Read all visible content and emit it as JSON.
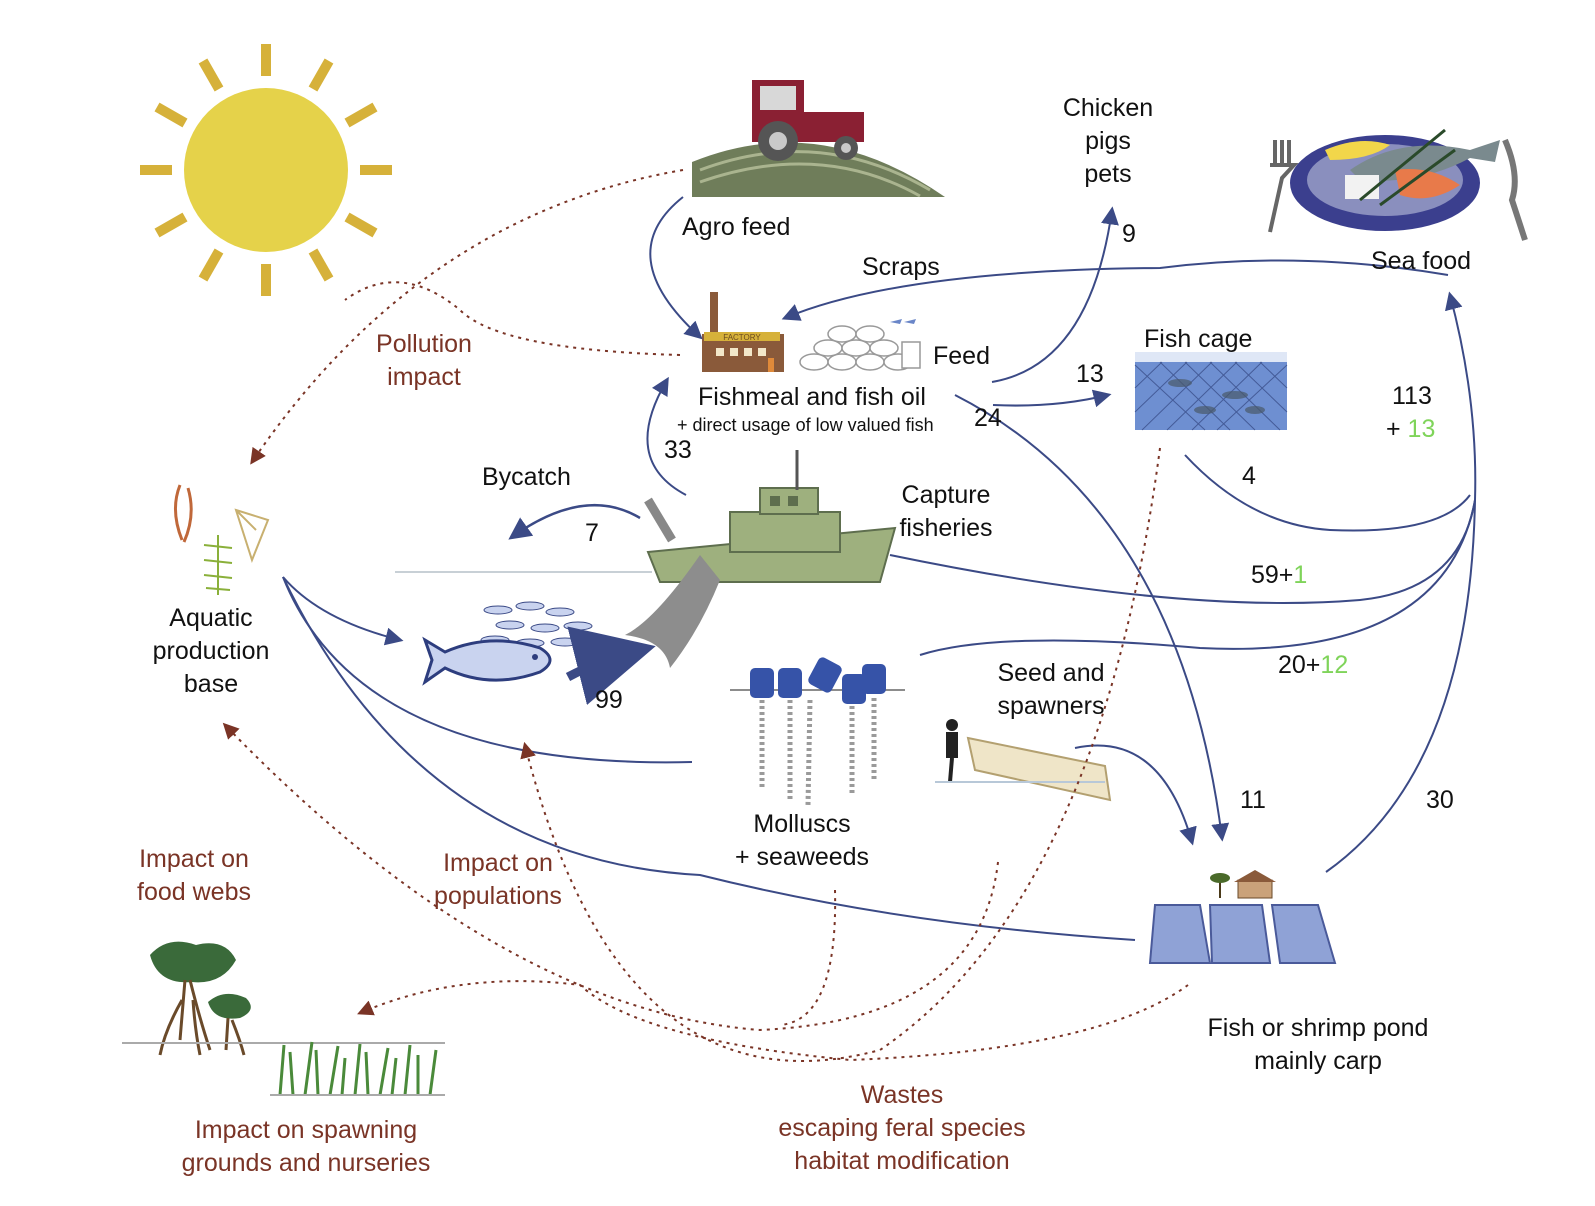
{
  "nodes": {
    "agro_feed": "Agro feed",
    "chicken": [
      "Chicken",
      "pigs",
      "pets"
    ],
    "sea_food": "Sea food",
    "scraps": "Scraps",
    "fish_cage": "Fish cage",
    "feed": "Feed",
    "fishmeal": "Fishmeal and fish oil",
    "fishmeal_sub": "+ direct usage of low valued fish",
    "factory_sign": "FACTORY",
    "bycatch": "Bycatch",
    "capture": [
      "Capture",
      "fisheries"
    ],
    "aquatic": [
      "Aquatic",
      "production",
      "base"
    ],
    "seed": [
      "Seed and",
      "spawners"
    ],
    "molluscs": [
      "Molluscs",
      "+ seaweeds"
    ],
    "pond": [
      "Fish or shrimp pond",
      "mainly carp"
    ]
  },
  "impacts": {
    "pollution": [
      "Pollution",
      "impact"
    ],
    "food_webs": [
      "Impact on",
      "food webs"
    ],
    "populations": [
      "Impact on",
      "populations"
    ],
    "spawning": [
      "Impact on spawning",
      "grounds and nurseries"
    ],
    "wastes": [
      "Wastes",
      "escaping feral species",
      "habitat modification"
    ]
  },
  "flows": {
    "chicken": "9",
    "cage": "13",
    "pond": "24",
    "fishmeal_from_capture": "33",
    "bycatch": "7",
    "catch": "99",
    "cage_to_seafood": "4",
    "seed_to_pond": "11",
    "pond_to_seafood": "30",
    "seafood_total": "113",
    "seafood_total_plus": "+ ",
    "seafood_total_extra": "13",
    "capture_to_seafood": "59+",
    "capture_to_seafood_extra": "1",
    "molluscs_to_seafood": "20+",
    "molluscs_to_seafood_extra": "12"
  },
  "colors": {
    "flow_line": "#3b4a86",
    "impact_line": "#7a3426",
    "impact_text": "#7a3426",
    "highlight_number": "#7fd45a",
    "sun": "#e5d24a",
    "sun_rays": "#d6b13a"
  }
}
